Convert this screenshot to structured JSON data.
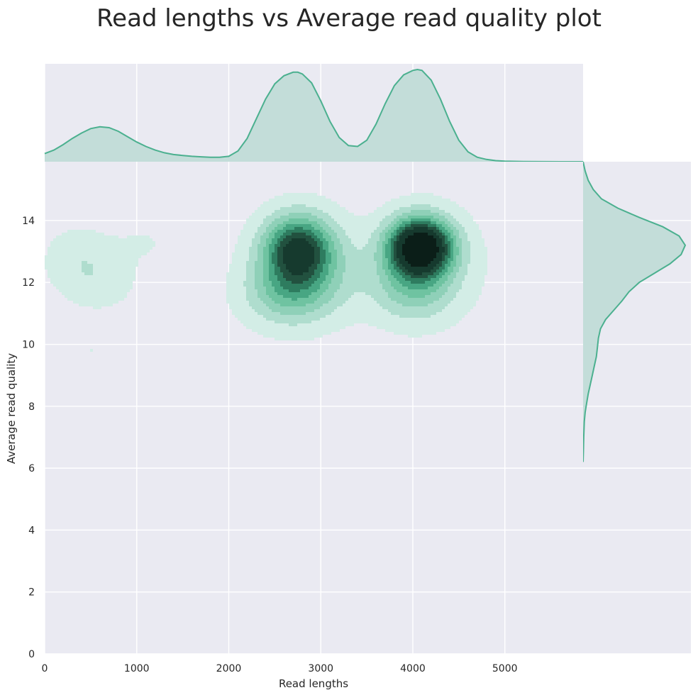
{
  "chart_data": {
    "type": "kde_joint",
    "title": "Read lengths vs Average read quality plot",
    "xlabel": "Read lengths",
    "ylabel": "Average read quality",
    "xlim": [
      0,
      5850
    ],
    "ylim": [
      0,
      15.9
    ],
    "xticks": [
      "0",
      "1000",
      "2000",
      "3000",
      "4000",
      "5000"
    ],
    "yticks": [
      "0",
      "2",
      "4",
      "6",
      "8",
      "10",
      "12",
      "14"
    ],
    "grid": true,
    "colors": {
      "background": "#eaeaf2",
      "line": "#4bb08f",
      "fill": "#c3ddd9",
      "levels": [
        "#d3ede6",
        "#afddce",
        "#8fd0b8",
        "#6fc3a1",
        "#48a683",
        "#2e7c5f",
        "#22513f",
        "#163a2e",
        "#0b1e18"
      ]
    },
    "kde_components": [
      {
        "x": 2750,
        "y": 13.1,
        "sx": 260,
        "sy": 0.75,
        "w": 1.0
      },
      {
        "x": 2650,
        "y": 11.7,
        "sx": 330,
        "sy": 0.75,
        "w": 0.45
      },
      {
        "x": 2950,
        "y": 12.4,
        "sx": 380,
        "sy": 1.0,
        "w": 0.22
      },
      {
        "x": 4080,
        "y": 13.15,
        "sx": 240,
        "sy": 0.65,
        "w": 1.55
      },
      {
        "x": 4000,
        "y": 11.8,
        "sx": 300,
        "sy": 0.75,
        "w": 0.35
      },
      {
        "x": 4150,
        "y": 12.5,
        "sx": 420,
        "sy": 1.1,
        "w": 0.15
      },
      {
        "x": 350,
        "y": 12.8,
        "sx": 250,
        "sy": 0.7,
        "w": 0.13
      },
      {
        "x": 600,
        "y": 12.1,
        "sx": 280,
        "sy": 0.7,
        "w": 0.13
      },
      {
        "x": 1100,
        "y": 13.3,
        "sx": 260,
        "sy": 0.5,
        "w": 0.06
      },
      {
        "x": 500,
        "y": 9.8,
        "sx": 90,
        "sy": 0.15,
        "w": 0.06
      }
    ],
    "marginal_x": {
      "x": [
        0,
        100,
        200,
        300,
        400,
        500,
        600,
        700,
        800,
        900,
        1000,
        1100,
        1200,
        1300,
        1400,
        1500,
        1600,
        1700,
        1800,
        1900,
        2000,
        2100,
        2200,
        2300,
        2400,
        2500,
        2600,
        2700,
        2750,
        2800,
        2900,
        3000,
        3100,
        3200,
        3300,
        3400,
        3500,
        3600,
        3700,
        3800,
        3900,
        4000,
        4050,
        4100,
        4200,
        4300,
        4400,
        4500,
        4600,
        4700,
        4800,
        4900,
        5000,
        5200,
        5400,
        5600,
        5850
      ],
      "density": [
        0.09,
        0.13,
        0.19,
        0.26,
        0.32,
        0.37,
        0.39,
        0.38,
        0.34,
        0.28,
        0.22,
        0.17,
        0.13,
        0.1,
        0.08,
        0.07,
        0.06,
        0.055,
        0.05,
        0.05,
        0.06,
        0.12,
        0.26,
        0.48,
        0.7,
        0.87,
        0.96,
        1.0,
        1.0,
        0.98,
        0.88,
        0.68,
        0.45,
        0.27,
        0.18,
        0.17,
        0.24,
        0.42,
        0.65,
        0.85,
        0.97,
        1.02,
        1.03,
        1.02,
        0.91,
        0.7,
        0.45,
        0.24,
        0.11,
        0.05,
        0.025,
        0.012,
        0.006,
        0.002,
        0.001,
        0.0,
        0.0
      ]
    },
    "marginal_y": {
      "y": [
        15.9,
        15.6,
        15.3,
        15.0,
        14.7,
        14.4,
        14.1,
        13.8,
        13.5,
        13.2,
        12.9,
        12.6,
        12.3,
        12.0,
        11.7,
        11.4,
        11.1,
        10.8,
        10.5,
        10.2,
        9.9,
        9.6,
        9.3,
        9.0,
        8.7,
        8.4,
        8.1,
        7.8,
        7.5,
        7.0,
        6.5,
        6.2
      ],
      "density": [
        0.0,
        0.02,
        0.05,
        0.1,
        0.18,
        0.34,
        0.55,
        0.78,
        0.94,
        1.0,
        0.96,
        0.85,
        0.7,
        0.55,
        0.45,
        0.38,
        0.3,
        0.22,
        0.17,
        0.15,
        0.14,
        0.13,
        0.11,
        0.09,
        0.07,
        0.05,
        0.035,
        0.02,
        0.012,
        0.006,
        0.003,
        0.0
      ]
    }
  }
}
